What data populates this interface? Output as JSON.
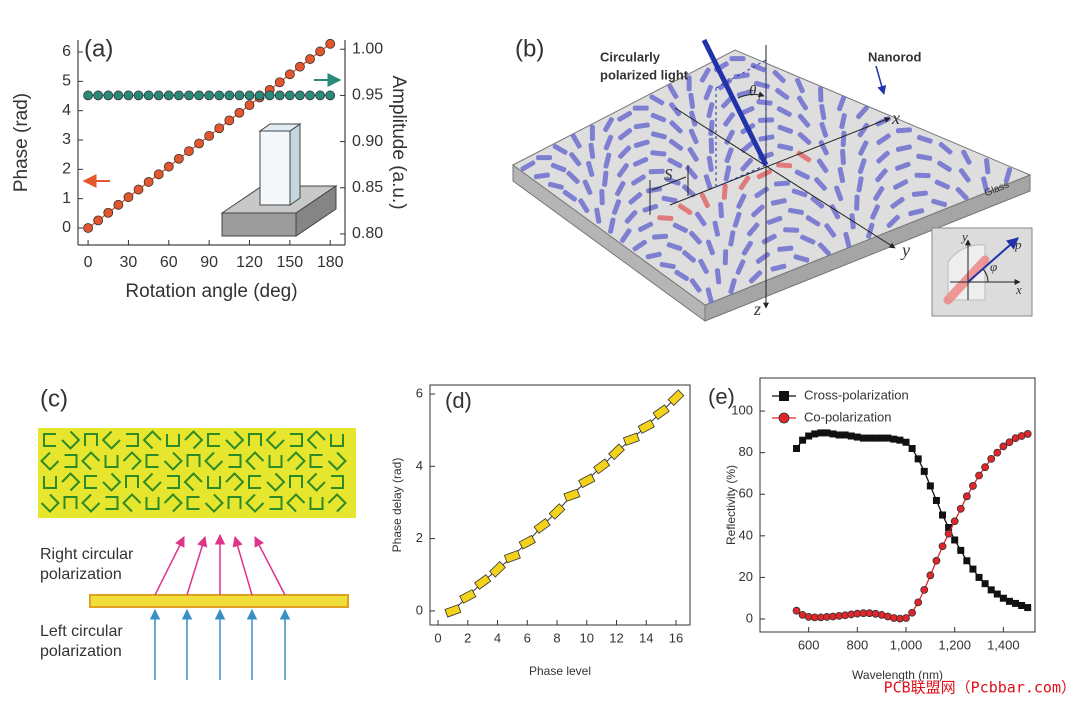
{
  "chart_data": [
    {
      "type": "line",
      "panel_label": "(a)",
      "xlabel": "Rotation angle (deg)",
      "ylabel": "Phase (rad)",
      "y2label": "Amplitude (a.u.)",
      "x": [
        0,
        7.5,
        15,
        22.5,
        30,
        37.5,
        45,
        52.5,
        60,
        67.5,
        75,
        82.5,
        90,
        97.5,
        105,
        112.5,
        120,
        127.5,
        135,
        142.5,
        150,
        157.5,
        165,
        172.5,
        180
      ],
      "xlim": [
        -7.5,
        191
      ],
      "xticks": [
        0,
        30,
        60,
        90,
        120,
        150,
        180
      ],
      "ylim": [
        -0.58,
        6.41
      ],
      "yticks": [
        0,
        1,
        2,
        3,
        4,
        5,
        6
      ],
      "y2lim": [
        0.788,
        1.01
      ],
      "y2ticks": [
        {
          "value": 0.8,
          "label": "0.80"
        },
        {
          "value": 0.85,
          "label": "0.85"
        },
        {
          "value": 0.9,
          "label": "0.90"
        },
        {
          "value": 0.95,
          "label": "0.95"
        },
        {
          "value": 1,
          "label": "1.00"
        }
      ],
      "series": [
        {
          "color": "#e4572e",
          "marker": "circle",
          "values": [
            0,
            0.26,
            0.52,
            0.79,
            1.05,
            1.31,
            1.57,
            1.83,
            2.09,
            2.36,
            2.62,
            2.88,
            3.14,
            3.4,
            3.67,
            3.93,
            4.19,
            4.45,
            4.71,
            4.97,
            5.24,
            5.5,
            5.76,
            6.02,
            6.28
          ]
        },
        {
          "color": "#2a8a7a",
          "marker": "circle",
          "axis": "y2",
          "values": [
            0.95,
            0.95,
            0.95,
            0.95,
            0.95,
            0.95,
            0.95,
            0.95,
            0.95,
            0.95,
            0.95,
            0.95,
            0.95,
            0.95,
            0.95,
            0.95,
            0.95,
            0.95,
            0.95,
            0.95,
            0.95,
            0.95,
            0.95,
            0.95,
            0.95
          ]
        }
      ]
    },
    {
      "type": "scatter",
      "panel_label": "(d)",
      "xlabel": "Phase level",
      "ylabel": "Phase delay (rad)",
      "x": [
        1,
        2,
        3,
        4,
        5,
        6,
        7,
        8,
        9,
        10,
        11,
        12,
        13,
        14,
        15,
        16
      ],
      "values": [
        0,
        0.4,
        0.8,
        1.15,
        1.5,
        1.9,
        2.35,
        2.75,
        3.2,
        3.6,
        4.0,
        4.4,
        4.75,
        5.1,
        5.5,
        5.9
      ],
      "color": "#f2d21b",
      "line": true,
      "xlim": [
        -0.54,
        16.94
      ],
      "xticks": [
        0,
        2,
        4,
        6,
        8,
        10,
        12,
        14,
        16
      ],
      "ylim": [
        -0.39,
        6.25
      ],
      "yticks": [
        0,
        2,
        4,
        6
      ]
    },
    {
      "type": "line",
      "panel_label": "(e)",
      "xlabel": "Wavelength (nm)",
      "ylabel": "Reflectivity (%)",
      "x": [
        550,
        575,
        600,
        625,
        650,
        675,
        700,
        725,
        750,
        775,
        800,
        825,
        850,
        875,
        900,
        925,
        950,
        975,
        1000,
        1025,
        1050,
        1075,
        1100,
        1125,
        1150,
        1175,
        1200,
        1225,
        1250,
        1275,
        1300,
        1325,
        1350,
        1375,
        1400,
        1425,
        1450,
        1475,
        1500
      ],
      "xlim": [
        400,
        1530
      ],
      "xticks": [
        600,
        800,
        {
          "value": 1000,
          "label": "1,000"
        },
        {
          "value": 1200,
          "label": "1,200"
        },
        {
          "value": 1400,
          "label": "1,400"
        }
      ],
      "ylim": [
        -6.25,
        115.9
      ],
      "yticks": [
        0,
        20,
        40,
        60,
        80,
        100
      ],
      "legend": "upper left",
      "series": [
        {
          "name": "Cross-polarization",
          "color": "#111111",
          "marker": "square",
          "values": [
            82,
            86,
            88,
            89,
            89.5,
            89.5,
            89,
            88.5,
            88.5,
            88,
            87.5,
            87,
            87,
            87,
            87,
            87,
            86.5,
            86,
            85,
            82,
            77,
            71,
            64,
            57,
            50,
            44,
            38,
            33,
            28,
            24,
            20,
            17,
            14,
            12,
            10,
            8.5,
            7.5,
            6.5,
            5.5
          ]
        },
        {
          "name": "Co-polarization",
          "color": "#e0262b",
          "marker": "circle",
          "values": [
            4,
            2,
            1,
            0.8,
            0.8,
            1,
            1.2,
            1.5,
            1.8,
            2.2,
            2.6,
            2.8,
            2.8,
            2.5,
            2,
            1.2,
            0.5,
            0.2,
            0.5,
            3,
            8,
            14,
            21,
            28,
            35,
            41,
            47,
            53,
            59,
            64,
            69,
            73,
            77,
            80,
            83,
            85,
            87,
            88,
            89
          ]
        }
      ]
    }
  ],
  "diagram_b": {
    "panel_label": "(b)",
    "light_label": [
      "Circularly",
      "polarized light"
    ],
    "nanorod_label": "Nanorod",
    "theta": "θ",
    "theta_sub": "i",
    "axis_x": "x",
    "axis_y": "y",
    "axis_z": "z",
    "spacing": "S",
    "substrate": "Glass",
    "inset": {
      "x": "x",
      "y": "y",
      "p": "p",
      "phi": "φ"
    }
  },
  "diagram_c": {
    "panel_label": "(c)",
    "top_label": [
      "Right circular",
      "polarization"
    ],
    "bottom_label": [
      "Left circular",
      "polarization"
    ]
  },
  "watermark": "PCB联盟网（Pcbbar.com）"
}
